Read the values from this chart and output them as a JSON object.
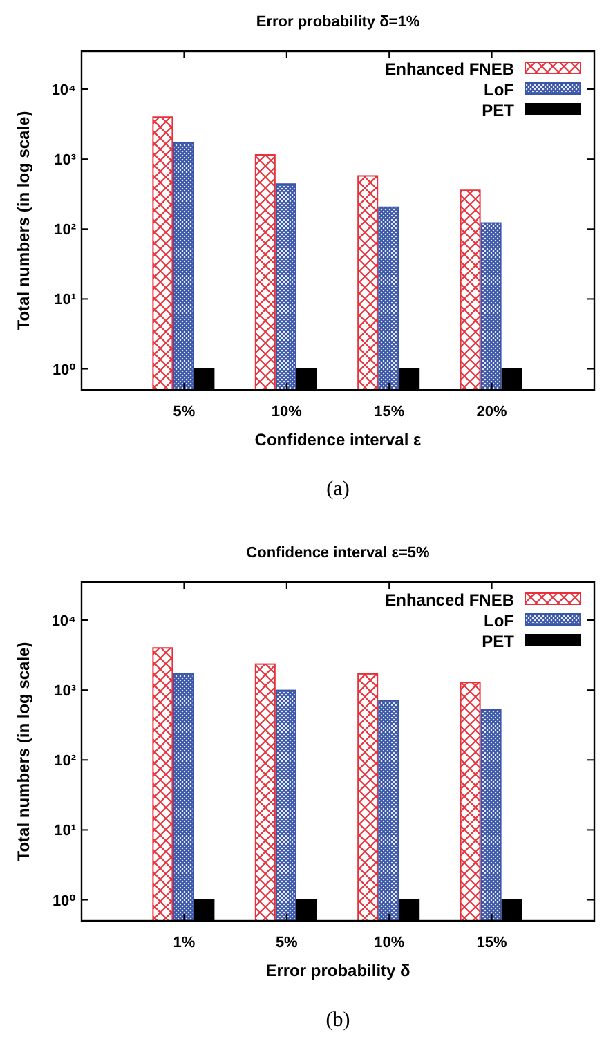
{
  "chart_data": [
    {
      "type": "bar",
      "title": "Error probability δ=1%",
      "xlabel": "Confidence interval ε",
      "ylabel": "Total numbers (in log scale)",
      "categories": [
        "5%",
        "10%",
        "15%",
        "20%"
      ],
      "series": [
        {
          "name": "Enhanced FNEB",
          "color": "#e8303a",
          "values": [
            4000,
            1150,
            575,
            358
          ]
        },
        {
          "name": "LoF",
          "color": "#3a56a8",
          "values": [
            1700,
            440,
            205,
            122
          ]
        },
        {
          "name": "PET",
          "color": "#000000",
          "values": [
            1,
            1,
            1,
            1
          ]
        }
      ],
      "log": "y",
      "ylim": [
        0.5,
        35000
      ],
      "yticks": [
        {
          "value": 1,
          "label": "10⁰"
        },
        {
          "value": 10,
          "label": "10¹"
        },
        {
          "value": 100,
          "label": "10²"
        },
        {
          "value": 1000,
          "label": "10³"
        },
        {
          "value": 10000,
          "label": "10⁴"
        }
      ],
      "legend": "top right",
      "grid": false,
      "annotations": [
        "(a)"
      ]
    },
    {
      "type": "bar",
      "title": "Confidence interval ε=5%",
      "xlabel": "Error probability δ",
      "ylabel": "Total numbers (in log scale)",
      "categories": [
        "1%",
        "5%",
        "10%",
        "15%"
      ],
      "series": [
        {
          "name": "Enhanced FNEB",
          "color": "#e8303a",
          "values": [
            4000,
            2350,
            1700,
            1280
          ]
        },
        {
          "name": "LoF",
          "color": "#3a56a8",
          "values": [
            1700,
            990,
            700,
            520
          ]
        },
        {
          "name": "PET",
          "color": "#000000",
          "values": [
            1,
            1,
            1,
            1
          ]
        }
      ],
      "log": "y",
      "ylim": [
        0.5,
        35000
      ],
      "yticks": [
        {
          "value": 1,
          "label": "10⁰"
        },
        {
          "value": 10,
          "label": "10¹"
        },
        {
          "value": 100,
          "label": "10²"
        },
        {
          "value": 1000,
          "label": "10³"
        },
        {
          "value": 10000,
          "label": "10⁴"
        }
      ],
      "legend": "top right",
      "grid": false,
      "annotations": [
        "(b)"
      ]
    }
  ]
}
